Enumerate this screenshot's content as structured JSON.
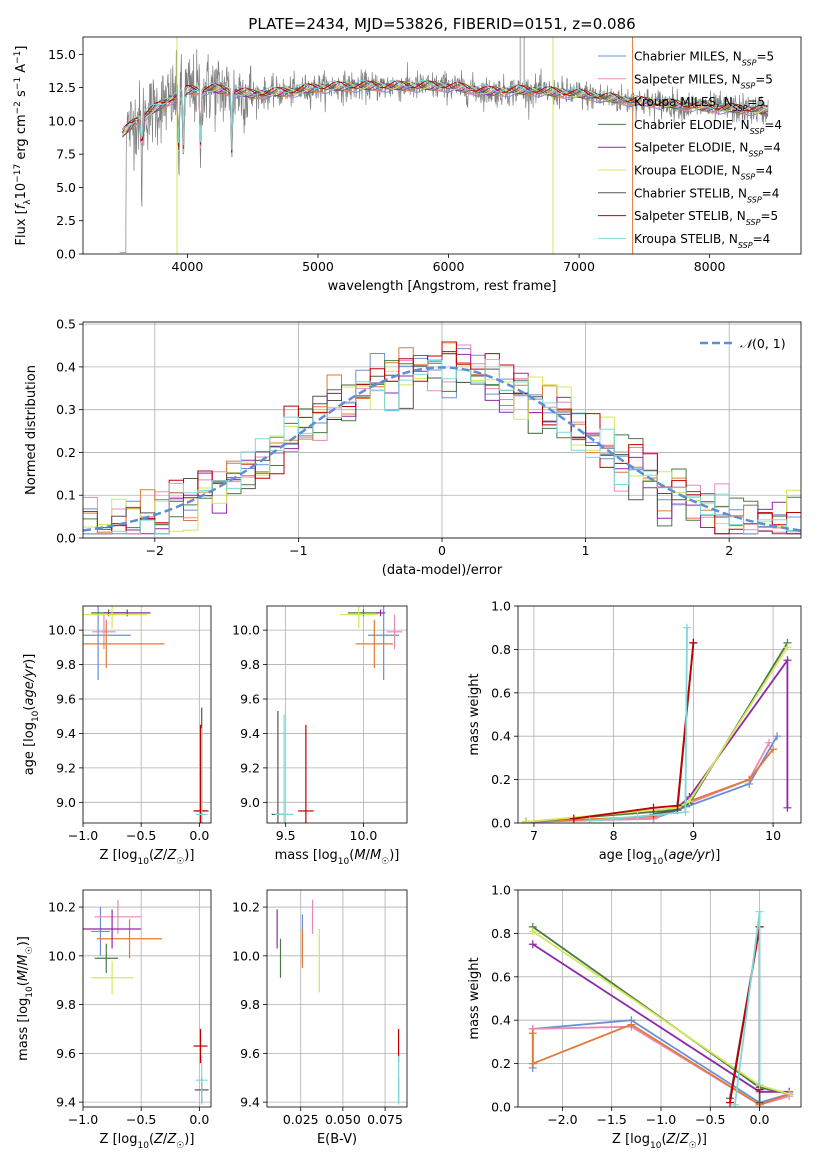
{
  "figure": {
    "title": "PLATE=2434, MJD=53826, FIBERID=0151, z=0.086"
  },
  "colors": {
    "Chabrier MILES": "#6a8fd8",
    "Salpeter MILES": "#e88ab8",
    "Kroupa MILES": "#e07b39",
    "Chabrier ELODIE": "#4a7a4a",
    "Salpeter ELODIE": "#8e2aa6",
    "Kroupa ELODIE": "#d4e85a",
    "Chabrier STELIB": "#555555",
    "Salpeter STELIB": "#c00000",
    "Kroupa STELIB": "#7fd8d8",
    "data": "#808080",
    "gaussian": "#5b8fd6"
  },
  "chart_data": [
    {
      "id": "spectrum",
      "type": "line",
      "title": "PLATE=2434, MJD=53826, FIBERID=0151, z=0.086",
      "xlabel": "wavelength [Angstrom, rest frame]",
      "ylabel": "Flux [f_λ 10^-17 erg cm^-2 s^-1 A^-1]",
      "xlim": [
        3200,
        8700
      ],
      "ylim": [
        0,
        16.3
      ],
      "xticks": [
        4000,
        5000,
        6000,
        7000,
        8000
      ],
      "yticks": [
        0.0,
        2.5,
        5.0,
        7.5,
        10.0,
        12.5,
        15.0
      ],
      "grid": false,
      "legend": "top-right",
      "legend_entries": [
        "Chabrier MILES, N_SSP=5",
        "Salpeter MILES, N_SSP=5",
        "Kroupa MILES, N_SSP=5",
        "Chabrier ELODIE, N_SSP=4",
        "Salpeter ELODIE, N_SSP=4",
        "Kroupa ELODIE, N_SSP=4",
        "Chabrier STELIB, N_SSP=4",
        "Salpeter STELIB, N_SSP=5",
        "Kroupa STELIB, N_SSP=4"
      ],
      "continuum_x": [
        3500,
        3600,
        3800,
        4000,
        4200,
        4500,
        4800,
        5000,
        5300,
        5600,
        6000,
        6300,
        6600,
        7000,
        7400,
        8000,
        8400
      ],
      "continuum_y": [
        9.0,
        10.0,
        11.2,
        12.3,
        12.4,
        12.0,
        12.2,
        12.5,
        12.6,
        12.6,
        12.6,
        12.2,
        12.3,
        12.0,
        11.5,
        11.0,
        10.8
      ],
      "absorption_lines_x": [
        3934,
        3969,
        4102,
        4340,
        3650
      ],
      "spikes_x": [
        3920,
        6800,
        7410
      ]
    },
    {
      "id": "residuals",
      "type": "line",
      "xlabel": "(data-model)/error",
      "ylabel": "Normed distribution",
      "xlim": [
        -2.5,
        2.5
      ],
      "ylim": [
        0,
        0.505
      ],
      "xticks": [
        -2,
        -1,
        0,
        1,
        2
      ],
      "yticks": [
        0.0,
        0.1,
        0.2,
        0.3,
        0.4,
        0.5
      ],
      "grid": true,
      "legend": "top-right",
      "legend_entries": [
        "N(0,1)"
      ],
      "gaussian": {
        "mean": 0,
        "sigma": 1
      }
    },
    {
      "id": "age_vs_Z",
      "type": "scatter",
      "xlabel": "Z [log10(Z/Z☉)]",
      "ylabel": "age  [log10(age/yr)]",
      "xlim": [
        -1.0,
        0.1
      ],
      "ylim": [
        8.88,
        10.14
      ],
      "xticks": [
        -1.0,
        -0.5,
        0.0
      ],
      "yticks": [
        9.0,
        9.2,
        9.4,
        9.6,
        9.8,
        10.0
      ],
      "grid": true,
      "points": [
        {
          "model": "Chabrier MILES",
          "x": -0.87,
          "y": 9.97,
          "xerr": 0.28,
          "yerr": 0.26
        },
        {
          "model": "Salpeter MILES",
          "x": -0.82,
          "y": 9.99,
          "xerr": 0.1,
          "yerr": 0.1
        },
        {
          "model": "Kroupa MILES",
          "x": -0.8,
          "y": 9.92,
          "xerr": 0.5,
          "yerr": 0.14
        },
        {
          "model": "Chabrier ELODIE",
          "x": -0.78,
          "y": 10.1,
          "xerr": 0.15,
          "yerr": 0.02
        },
        {
          "model": "Salpeter ELODIE",
          "x": -0.62,
          "y": 10.1,
          "xerr": 0.2,
          "yerr": 0.02
        },
        {
          "model": "Kroupa ELODIE",
          "x": -0.75,
          "y": 10.09,
          "xerr": 0.3,
          "yerr": 0.08
        },
        {
          "model": "Chabrier STELIB",
          "x": 0.02,
          "y": 8.95,
          "xerr": 0.06,
          "yerr": 0.6
        },
        {
          "model": "Salpeter STELIB",
          "x": 0.01,
          "y": 8.95,
          "xerr": 0.06,
          "yerr": 0.5
        },
        {
          "model": "Kroupa STELIB",
          "x": 0.02,
          "y": 8.93,
          "xerr": 0.05,
          "yerr": 0.5
        }
      ]
    },
    {
      "id": "age_vs_mass",
      "type": "scatter",
      "xlabel": "mass [log10(M/M☉)]",
      "ylabel": "",
      "xlim": [
        9.38,
        10.28
      ],
      "ylim": [
        8.88,
        10.14
      ],
      "xticks": [
        9.5,
        10.0
      ],
      "yticks": [
        9.0,
        9.2,
        9.4,
        9.6,
        9.8,
        10.0
      ],
      "grid": true,
      "points": [
        {
          "model": "Chabrier MILES",
          "x": 10.13,
          "y": 9.97,
          "xerr": 0.1,
          "yerr": 0.26
        },
        {
          "model": "Salpeter MILES",
          "x": 10.2,
          "y": 9.99,
          "xerr": 0.05,
          "yerr": 0.1
        },
        {
          "model": "Kroupa MILES",
          "x": 10.07,
          "y": 9.92,
          "xerr": 0.12,
          "yerr": 0.14
        },
        {
          "model": "Chabrier ELODIE",
          "x": 10.0,
          "y": 10.1,
          "xerr": 0.1,
          "yerr": 0.02
        },
        {
          "model": "Salpeter ELODIE",
          "x": 10.11,
          "y": 10.1,
          "xerr": 0.03,
          "yerr": 0.02
        },
        {
          "model": "Kroupa ELODIE",
          "x": 9.97,
          "y": 10.09,
          "xerr": 0.12,
          "yerr": 0.08
        },
        {
          "model": "Chabrier STELIB",
          "x": 9.45,
          "y": 8.93,
          "xerr": 0.04,
          "yerr": 0.6
        },
        {
          "model": "Salpeter STELIB",
          "x": 9.63,
          "y": 8.95,
          "xerr": 0.05,
          "yerr": 0.5
        },
        {
          "model": "Kroupa STELIB",
          "x": 9.49,
          "y": 8.93,
          "xerr": 0.06,
          "yerr": 0.58
        }
      ]
    },
    {
      "id": "massweight_vs_age",
      "type": "line",
      "xlabel": "age  [log10(age/yr)]",
      "ylabel": "mass weight",
      "xlim": [
        6.8,
        10.35
      ],
      "ylim": [
        0,
        1.0
      ],
      "xticks": [
        7,
        8,
        9,
        10
      ],
      "yticks": [
        0.0,
        0.2,
        0.4,
        0.6,
        0.8,
        1.0
      ],
      "grid": true,
      "series": [
        {
          "model": "Chabrier MILES",
          "x": [
            6.9,
            8.5,
            8.8,
            9.7,
            10.05
          ],
          "y": [
            0.005,
            0.02,
            0.06,
            0.18,
            0.4
          ]
        },
        {
          "model": "Salpeter MILES",
          "x": [
            6.9,
            8.5,
            8.8,
            9.7,
            9.95
          ],
          "y": [
            0.005,
            0.02,
            0.07,
            0.2,
            0.37
          ]
        },
        {
          "model": "Kroupa MILES",
          "x": [
            6.9,
            8.5,
            8.8,
            9.7,
            10.0
          ],
          "y": [
            0.005,
            0.03,
            0.08,
            0.2,
            0.34
          ]
        },
        {
          "model": "Chabrier ELODIE",
          "x": [
            6.9,
            8.8,
            8.95,
            10.18
          ],
          "y": [
            0.005,
            0.06,
            0.09,
            0.83
          ]
        },
        {
          "model": "Salpeter ELODIE",
          "x": [
            8.8,
            8.95,
            10.18,
            10.18
          ],
          "y": [
            0.07,
            0.12,
            0.75,
            0.07
          ]
        },
        {
          "model": "Kroupa ELODIE",
          "x": [
            6.9,
            8.8,
            8.95,
            10.18
          ],
          "y": [
            0.005,
            0.07,
            0.1,
            0.81
          ]
        },
        {
          "model": "Chabrier STELIB",
          "x": [
            8.5,
            8.8,
            9.0
          ],
          "y": [
            0.04,
            0.06,
            0.83
          ]
        },
        {
          "model": "Salpeter STELIB",
          "x": [
            7.5,
            8.5,
            8.8,
            9.0
          ],
          "y": [
            0.02,
            0.07,
            0.08,
            0.83
          ]
        },
        {
          "model": "Kroupa STELIB",
          "x": [
            7.7,
            8.3,
            8.9,
            8.92
          ],
          "y": [
            0.01,
            0.03,
            0.05,
            0.9
          ]
        }
      ]
    },
    {
      "id": "mass_vs_Z",
      "type": "scatter",
      "xlabel": "Z [log10(Z/Z☉)]",
      "ylabel": "mass [log10(M/M☉)]",
      "xlim": [
        -1.0,
        0.1
      ],
      "ylim": [
        9.38,
        10.27
      ],
      "xticks": [
        -1.0,
        -0.5,
        0.0
      ],
      "yticks": [
        9.4,
        9.6,
        9.8,
        10.0,
        10.2
      ],
      "grid": true,
      "points": [
        {
          "model": "Chabrier MILES",
          "x": -0.85,
          "y": 10.1,
          "xerr": 0.08,
          "yerr": 0.1
        },
        {
          "model": "Salpeter MILES",
          "x": -0.7,
          "y": 10.16,
          "xerr": 0.2,
          "yerr": 0.07
        },
        {
          "model": "Kroupa MILES",
          "x": -0.6,
          "y": 10.07,
          "xerr": 0.28,
          "yerr": 0.08
        },
        {
          "model": "Chabrier ELODIE",
          "x": -0.8,
          "y": 9.99,
          "xerr": 0.1,
          "yerr": 0.06
        },
        {
          "model": "Salpeter ELODIE",
          "x": -0.75,
          "y": 10.11,
          "xerr": 0.25,
          "yerr": 0.08
        },
        {
          "model": "Kroupa ELODIE",
          "x": -0.75,
          "y": 9.91,
          "xerr": 0.18,
          "yerr": 0.07
        },
        {
          "model": "Chabrier STELIB",
          "x": 0.02,
          "y": 9.45,
          "xerr": 0.06,
          "yerr": 0.05
        },
        {
          "model": "Salpeter STELIB",
          "x": 0.01,
          "y": 9.63,
          "xerr": 0.06,
          "yerr": 0.07
        },
        {
          "model": "Kroupa STELIB",
          "x": 0.02,
          "y": 9.49,
          "xerr": 0.05,
          "yerr": 0.1
        }
      ]
    },
    {
      "id": "mass_vs_ebv",
      "type": "scatter",
      "xlabel": "E(B-V)",
      "ylabel": "",
      "xlim": [
        0.005,
        0.088
      ],
      "ylim": [
        9.38,
        10.27
      ],
      "xticks": [
        0.025,
        0.05,
        0.075
      ],
      "xtick_labels": [
        "0.025",
        "0.050",
        "0.075"
      ],
      "yticks": [
        9.4,
        9.6,
        9.8,
        10.0,
        10.2
      ],
      "grid": true,
      "points": [
        {
          "model": "Chabrier MILES",
          "x": 0.026,
          "y": 10.07,
          "yerr": 0.1
        },
        {
          "model": "Salpeter MILES",
          "x": 0.032,
          "y": 10.16,
          "yerr": 0.07
        },
        {
          "model": "Kroupa MILES",
          "x": 0.026,
          "y": 10.03,
          "yerr": 0.08
        },
        {
          "model": "Chabrier ELODIE",
          "x": 0.013,
          "y": 9.99,
          "yerr": 0.08
        },
        {
          "model": "Salpeter ELODIE",
          "x": 0.011,
          "y": 10.11,
          "yerr": 0.08
        },
        {
          "model": "Kroupa ELODIE",
          "x": 0.036,
          "y": 9.98,
          "yerr": 0.13
        },
        {
          "model": "Chabrier STELIB",
          "x": 0.083,
          "y": 9.45,
          "yerr": 0.05
        },
        {
          "model": "Salpeter STELIB",
          "x": 0.083,
          "y": 9.63,
          "yerr": 0.07
        },
        {
          "model": "Kroupa STELIB",
          "x": 0.083,
          "y": 9.49,
          "yerr": 0.1
        }
      ]
    },
    {
      "id": "massweight_vs_Z",
      "type": "line",
      "xlabel": "Z [log10(Z/Z☉)]",
      "ylabel": "mass weight",
      "xlim": [
        -2.45,
        0.42
      ],
      "ylim": [
        0,
        1.0
      ],
      "xticks": [
        -2.0,
        -1.5,
        -1.0,
        -0.5,
        0.0
      ],
      "yticks": [
        0.0,
        0.2,
        0.4,
        0.6,
        0.8,
        1.0
      ],
      "grid": true,
      "series": [
        {
          "model": "Chabrier MILES",
          "x": [
            -2.3,
            -2.3,
            -1.3,
            0.0,
            0.3
          ],
          "y": [
            0.18,
            0.36,
            0.4,
            0.02,
            0.06
          ]
        },
        {
          "model": "Salpeter MILES",
          "x": [
            -2.3,
            -1.3,
            0.0,
            0.3
          ],
          "y": [
            0.36,
            0.37,
            0.01,
            0.05
          ]
        },
        {
          "model": "Kroupa MILES",
          "x": [
            -2.3,
            -2.3,
            -1.3,
            0.0,
            0.3
          ],
          "y": [
            0.34,
            0.2,
            0.38,
            0.01,
            0.06
          ]
        },
        {
          "model": "Chabrier ELODIE",
          "x": [
            -2.3,
            0.0,
            0.3
          ],
          "y": [
            0.83,
            0.09,
            0.06
          ]
        },
        {
          "model": "Salpeter ELODIE",
          "x": [
            -2.3,
            0.0,
            0.3
          ],
          "y": [
            0.75,
            0.07,
            0.07
          ]
        },
        {
          "model": "Kroupa ELODIE",
          "x": [
            -2.3,
            0.0,
            0.3
          ],
          "y": [
            0.81,
            0.1,
            0.06
          ]
        },
        {
          "model": "Chabrier STELIB",
          "x": [
            -0.3,
            0.0,
            0.0
          ],
          "y": [
            0.04,
            0.83,
            0.02
          ]
        },
        {
          "model": "Salpeter STELIB",
          "x": [
            -0.3,
            0.0,
            0.0
          ],
          "y": [
            0.02,
            0.83,
            0.08
          ]
        },
        {
          "model": "Kroupa STELIB",
          "x": [
            -0.25,
            0.0,
            0.0
          ],
          "y": [
            0.01,
            0.9,
            0.1
          ]
        }
      ]
    }
  ]
}
